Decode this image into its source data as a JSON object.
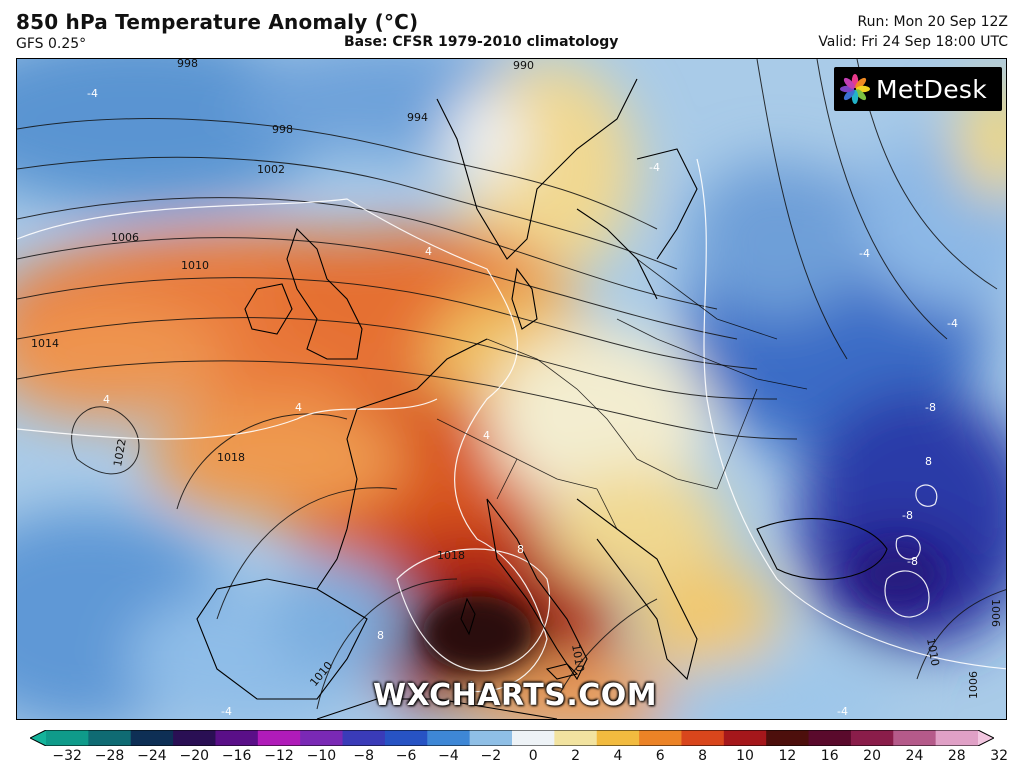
{
  "header": {
    "title": "850 hPa Temperature Anomaly (°C)",
    "model": "GFS 0.25°",
    "base": "Base: CFSR 1979-2010 climatology",
    "run": "Run: Mon 20 Sep 12Z",
    "valid": "Valid: Fri 24 Sep 18:00 UTC"
  },
  "logo": {
    "text": "MetDesk",
    "icon": "pinwheel-icon"
  },
  "watermark": "WXCHARTS.COM",
  "colorbar": {
    "ticks": [
      "−32",
      "−28",
      "−24",
      "−20",
      "−16",
      "−12",
      "−10",
      "−8",
      "−6",
      "−4",
      "−2",
      "0",
      "2",
      "4",
      "6",
      "8",
      "10",
      "12",
      "16",
      "20",
      "24",
      "28",
      "32"
    ],
    "colors": [
      "#0f9b8a",
      "#0f6b73",
      "#0e2f55",
      "#2a0f54",
      "#5a0f88",
      "#b01bb9",
      "#7a29b5",
      "#3a3bb8",
      "#2753c4",
      "#3e87d6",
      "#8fbfe6",
      "#eef3f7",
      "#f2e3a0",
      "#f2bb3f",
      "#ec8326",
      "#d9461c",
      "#a5171b",
      "#4d0f0c",
      "#5a0a2c",
      "#8a1d4a",
      "#b55a8a",
      "#e0a0c6"
    ]
  },
  "map_labels": {
    "isobars": [
      "998",
      "994",
      "990",
      "998",
      "1002",
      "1006",
      "1010",
      "1014",
      "1018",
      "1022",
      "1018",
      "1010",
      "1010",
      "1006",
      "1010",
      "1006"
    ],
    "anomaly": [
      "-4",
      "-4",
      "4",
      "4",
      "4",
      "4",
      "8",
      "8",
      "-8",
      "-8",
      "-8",
      "-4",
      "-4",
      "-4",
      "-4",
      "4",
      "8"
    ]
  }
}
